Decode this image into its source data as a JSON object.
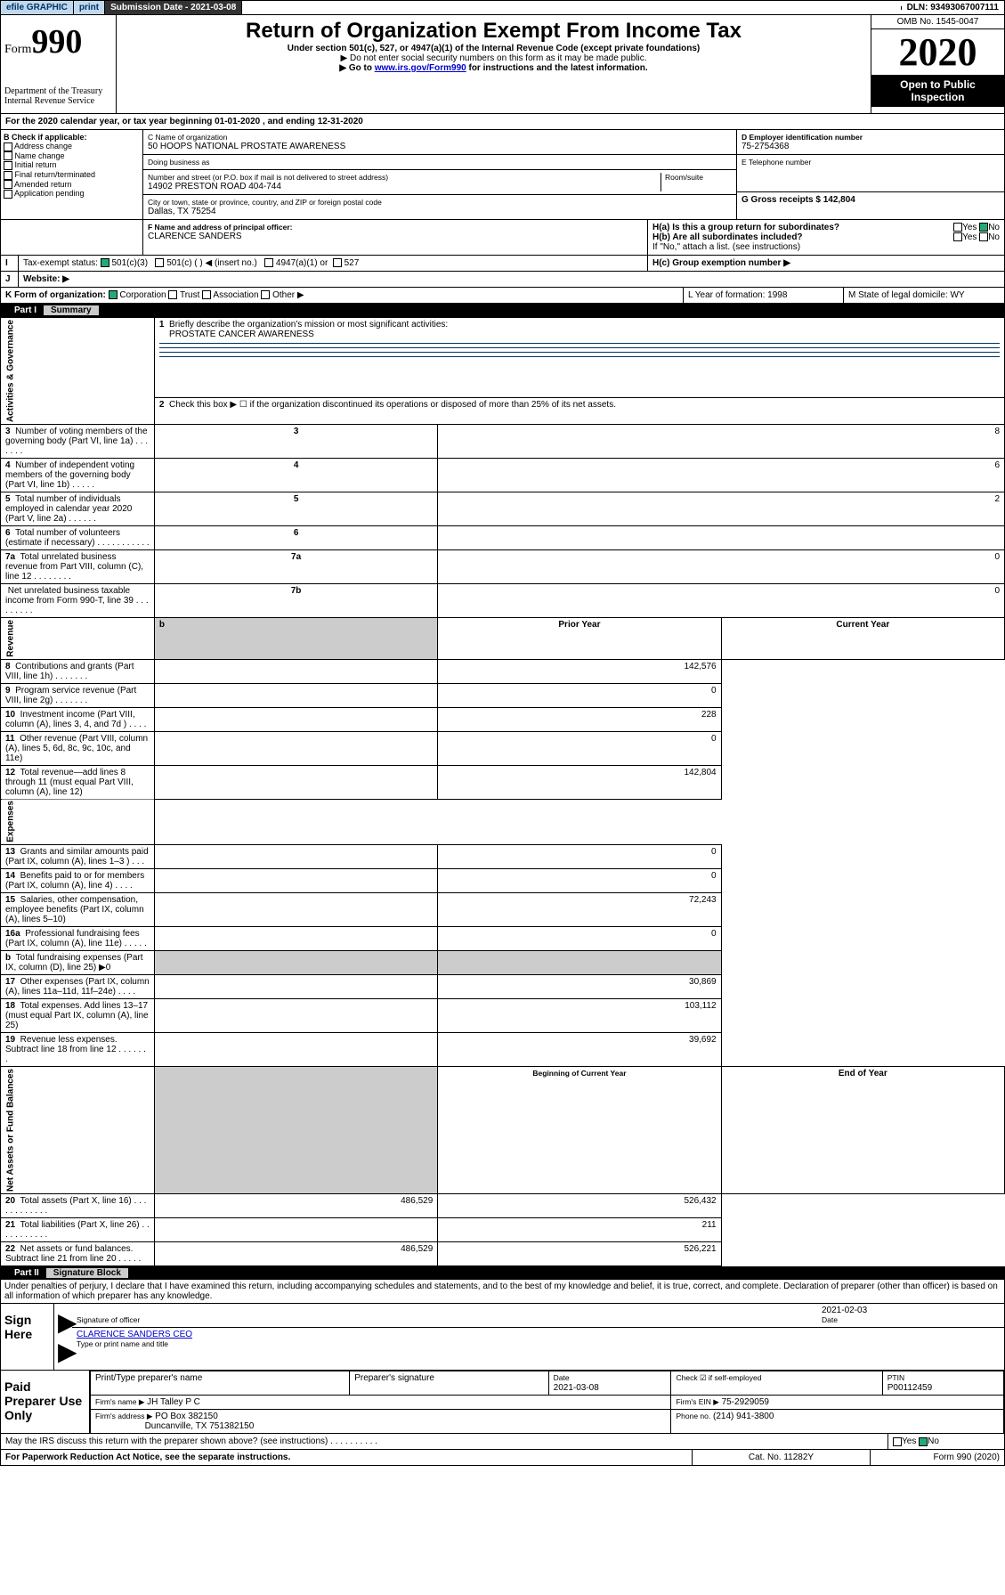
{
  "topbar": {
    "efile": "efile GRAPHIC",
    "print": "print",
    "submission_label": "Submission Date - 2021-03-08",
    "dln_label": "DLN: 93493067007111"
  },
  "header": {
    "form_word": "Form",
    "form_num": "990",
    "title": "Return of Organization Exempt From Income Tax",
    "subtitle": "Under section 501(c), 527, or 4947(a)(1) of the Internal Revenue Code (except private foundations)",
    "note1": "▶ Do not enter social security numbers on this form as it may be made public.",
    "note2_pre": "▶ Go to ",
    "note2_link": "www.irs.gov/Form990",
    "note2_post": " for instructions and the latest information.",
    "dept": "Department of the Treasury\nInternal Revenue Service",
    "omb": "OMB No. 1545-0047",
    "year": "2020",
    "open": "Open to Public Inspection"
  },
  "line_a": "For the 2020 calendar year, or tax year beginning 01-01-2020     , and ending 12-31-2020",
  "box_b": {
    "label": "B Check if applicable:",
    "items": [
      "Address change",
      "Name change",
      "Initial return",
      "Final return/terminated",
      "Amended return",
      "Application pending"
    ]
  },
  "box_c": {
    "name_label": "C Name of organization",
    "name": "50 HOOPS NATIONAL PROSTATE AWARENESS",
    "dba_label": "Doing business as",
    "addr_label": "Number and street (or P.O. box if mail is not delivered to street address)",
    "room_label": "Room/suite",
    "addr": "14902 PRESTON ROAD 404-744",
    "city_label": "City or town, state or province, country, and ZIP or foreign postal code",
    "city": "Dallas, TX  75254"
  },
  "box_d": {
    "ein_label": "D Employer identification number",
    "ein": "75-2754368",
    "phone_label": "E Telephone number",
    "gross_label": "G Gross receipts $ 142,804"
  },
  "box_f": {
    "label": "F  Name and address of principal officer:",
    "name": "CLARENCE SANDERS"
  },
  "box_h": {
    "ha": "H(a)  Is this a group return for subordinates?",
    "hb": "H(b)  Are all subordinates included?",
    "hb_note": "If \"No,\" attach a list. (see instructions)",
    "hc": "H(c)  Group exemption number ▶",
    "yes": "Yes",
    "no": "No"
  },
  "box_i": {
    "label": "Tax-exempt status:",
    "c3": "501(c)(3)",
    "c": "501(c) (  ) ◀ (insert no.)",
    "a1": "4947(a)(1) or",
    "527": "527"
  },
  "box_j": "Website: ▶",
  "box_k": "K Form of organization:",
  "k_opts": [
    "Corporation",
    "Trust",
    "Association",
    "Other ▶"
  ],
  "box_l": "L Year of formation: 1998",
  "box_m": "M State of legal domicile: WY",
  "part1": {
    "num": "Part I",
    "title": "Summary",
    "side_a": "Activities & Governance",
    "side_r": "Revenue",
    "side_e": "Expenses",
    "side_n": "Net Assets or Fund Balances",
    "q1": "Briefly describe the organization's mission or most significant activities:",
    "mission": "PROSTATE CANCER AWARENESS",
    "q2": "Check this box ▶ ☐  if the organization discontinued its operations or disposed of more than 25% of its net assets.",
    "rows_a": [
      {
        "n": "3",
        "t": "Number of voting members of the governing body (Part VI, line 1a)   .    .    .    .    .    .    .",
        "b": "3",
        "v": "8"
      },
      {
        "n": "4",
        "t": "Number of independent voting members of the governing body (Part VI, line 1b)   .    .    .    .    .",
        "b": "4",
        "v": "6"
      },
      {
        "n": "5",
        "t": "Total number of individuals employed in calendar year 2020 (Part V, line 2a)   .    .    .    .    .    .",
        "b": "5",
        "v": "2"
      },
      {
        "n": "6",
        "t": "Total number of volunteers (estimate if necessary)   .    .    .    .    .    .    .    .    .    .    .",
        "b": "6",
        "v": ""
      },
      {
        "n": "7a",
        "t": "Total unrelated business revenue from Part VIII, column (C), line 12   .    .    .    .    .    .    .    .",
        "b": "7a",
        "v": "0"
      },
      {
        "n": "",
        "t": "Net unrelated business taxable income from Form 990-T, line 39   .    .    .    .    .    .    .    .    .",
        "b": "7b",
        "v": "0"
      }
    ],
    "col_h": {
      "prior": "Prior Year",
      "current": "Current Year"
    },
    "rows_r": [
      {
        "n": "8",
        "t": "Contributions and grants (Part VIII, line 1h)   .    .    .    .    .    .    .",
        "p": "",
        "c": "142,576"
      },
      {
        "n": "9",
        "t": "Program service revenue (Part VIII, line 2g)   .    .    .    .    .    .    .",
        "p": "",
        "c": "0"
      },
      {
        "n": "10",
        "t": "Investment income (Part VIII, column (A), lines 3, 4, and 7d )   .    .    .    .",
        "p": "",
        "c": "228"
      },
      {
        "n": "11",
        "t": "Other revenue (Part VIII, column (A), lines 5, 6d, 8c, 9c, 10c, and 11e)",
        "p": "",
        "c": "0"
      },
      {
        "n": "12",
        "t": "Total revenue—add lines 8 through 11 (must equal Part VIII, column (A), line 12)",
        "p": "",
        "c": "142,804"
      }
    ],
    "rows_e": [
      {
        "n": "13",
        "t": "Grants and similar amounts paid (Part IX, column (A), lines 1–3 )   .    .    .",
        "p": "",
        "c": "0"
      },
      {
        "n": "14",
        "t": "Benefits paid to or for members (Part IX, column (A), line 4)   .    .    .    .",
        "p": "",
        "c": "0"
      },
      {
        "n": "15",
        "t": "Salaries, other compensation, employee benefits (Part IX, column (A), lines 5–10)",
        "p": "",
        "c": "72,243"
      },
      {
        "n": "16a",
        "t": "Professional fundraising fees (Part IX, column (A), line 11e)   .    .    .    .    .",
        "p": "",
        "c": "0"
      },
      {
        "n": "b",
        "t": "Total fundraising expenses (Part IX, column (D), line 25) ▶0",
        "p": "grey",
        "c": "grey"
      },
      {
        "n": "17",
        "t": "Other expenses (Part IX, column (A), lines 11a–11d, 11f–24e)   .    .    .    .",
        "p": "",
        "c": "30,869"
      },
      {
        "n": "18",
        "t": "Total expenses. Add lines 13–17 (must equal Part IX, column (A), line 25)",
        "p": "",
        "c": "103,112"
      },
      {
        "n": "19",
        "t": "Revenue less expenses. Subtract line 18 from line 12   .    .    .    .    .    .    .",
        "p": "",
        "c": "39,692"
      }
    ],
    "col_h2": {
      "beg": "Beginning of Current Year",
      "end": "End of Year"
    },
    "rows_n": [
      {
        "n": "20",
        "t": "Total assets (Part X, line 16)   .    .    .    .    .    .    .    .    .    .    .    .",
        "p": "486,529",
        "c": "526,432"
      },
      {
        "n": "21",
        "t": "Total liabilities (Part X, line 26)   .    .    .    .    .    .    .    .    .    .    .",
        "p": "",
        "c": "211"
      },
      {
        "n": "22",
        "t": "Net assets or fund balances. Subtract line 21 from line 20   .    .    .    .    .",
        "p": "486,529",
        "c": "526,221"
      }
    ]
  },
  "part2": {
    "num": "Part II",
    "title": "Signature Block",
    "jurat": "Under penalties of perjury, I declare that I have examined this return, including accompanying schedules and statements, and to the best of my knowledge and belief, it is true, correct, and complete. Declaration of preparer (other than officer) is based on all information of which preparer has any knowledge.",
    "sign_here": "Sign Here",
    "sig_officer": "Signature of officer",
    "sig_date": "2021-02-03",
    "date_label": "Date",
    "officer_name": "CLARENCE SANDERS CEO",
    "type_name": "Type or print name and title",
    "paid_label": "Paid Preparer Use Only",
    "prep_name_h": "Print/Type preparer's name",
    "prep_sig_h": "Preparer's signature",
    "prep_date_h": "Date",
    "prep_date": "2021-03-08",
    "prep_check": "Check ☑ if self-employed",
    "ptin_h": "PTIN",
    "ptin": "P00112459",
    "firm_name_l": "Firm's name    ▶",
    "firm_name": "JH Talley P C",
    "firm_ein_l": "Firm's EIN ▶",
    "firm_ein": "75-2929059",
    "firm_addr_l": "Firm's address ▶",
    "firm_addr": "PO Box 382150",
    "firm_city": "Duncanville, TX  751382150",
    "firm_phone_l": "Phone no.",
    "firm_phone": "(214) 941-3800",
    "discuss": "May the IRS discuss this return with the preparer shown above? (see instructions)   .    .    .    .    .    .    .    .    .    .",
    "pra": "For Paperwork Reduction Act Notice, see the separate instructions.",
    "cat": "Cat. No. 11282Y",
    "formno": "Form 990 (2020)"
  }
}
